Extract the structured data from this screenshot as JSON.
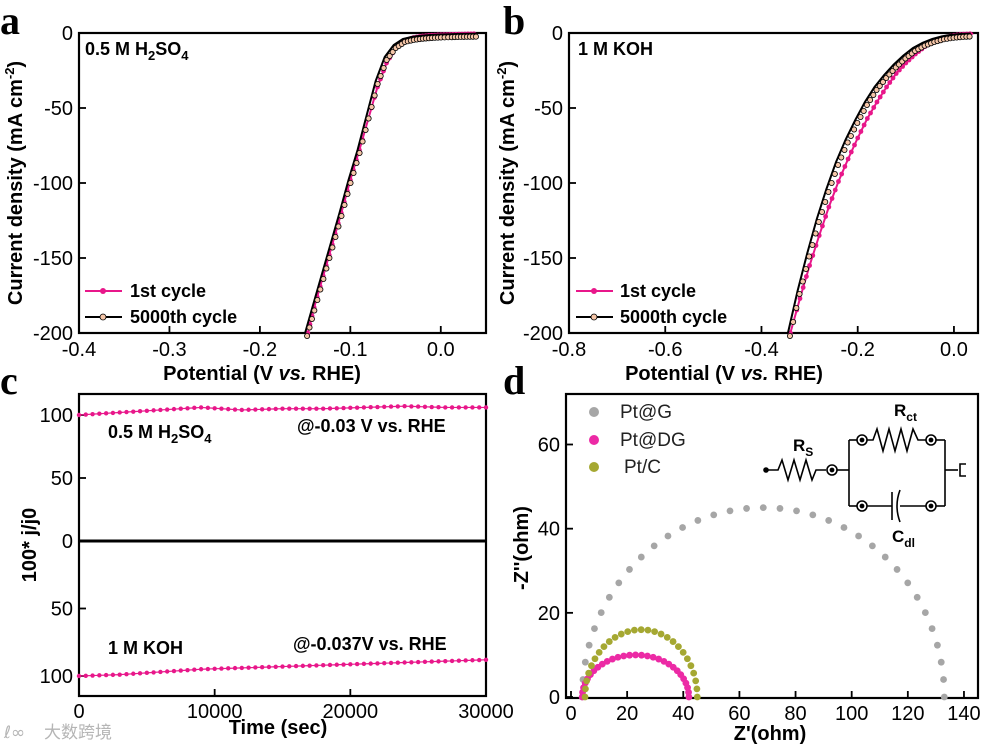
{
  "watermark": "大数跨境",
  "chart_data": [
    {
      "panel": "a",
      "type": "line",
      "annotation": "0.5 M H2SO4",
      "xlabel": "Potential (V vs. RHE)",
      "ylabel": "Current density (mA cm-2)",
      "xlim": [
        -0.4,
        0.05
      ],
      "ylim": [
        -200,
        0
      ],
      "xticks": [
        "-0.4",
        "-0.3",
        "-0.2",
        "-0.1",
        "0.0"
      ],
      "yticks": [
        "0",
        "-50",
        "-100",
        "-150",
        "-200"
      ],
      "legend": [
        "1st cycle",
        "5000th cycle"
      ],
      "series": [
        {
          "name": "1st cycle",
          "color": "#e8178a",
          "x": [
            -0.147,
            -0.14,
            -0.13,
            -0.12,
            -0.11,
            -0.1,
            -0.09,
            -0.08,
            -0.07,
            -0.06,
            -0.05,
            -0.04,
            -0.03,
            -0.02,
            -0.01,
            0.0,
            0.01,
            0.02,
            0.03,
            0.04
          ],
          "y": [
            -200,
            -183,
            -162,
            -141,
            -120,
            -98,
            -78,
            -57,
            -36,
            -20,
            -10,
            -5,
            -3,
            -2,
            -1.5,
            -1.2,
            -1,
            -0.8,
            -0.6,
            -0.5
          ]
        },
        {
          "name": "5000th cycle",
          "color": "#000000",
          "x": [
            -0.15,
            -0.142,
            -0.132,
            -0.122,
            -0.112,
            -0.102,
            -0.092,
            -0.082,
            -0.072,
            -0.062,
            -0.052,
            -0.042,
            -0.032,
            -0.022,
            -0.012,
            -0.002,
            0.01,
            0.02,
            0.03,
            0.04
          ],
          "y": [
            -200,
            -183,
            -162,
            -141,
            -120,
            -98,
            -78,
            -55,
            -32,
            -16,
            -8,
            -4,
            -2.6,
            -1.8,
            -1.3,
            -1,
            -0.8,
            -0.6,
            -0.5,
            -0.4
          ]
        }
      ]
    },
    {
      "panel": "b",
      "type": "line",
      "annotation": "1 M KOH",
      "xlabel": "Potential (V vs. RHE)",
      "ylabel": "Current density (mA cm-2)",
      "xlim": [
        -0.8,
        0.05
      ],
      "ylim": [
        -200,
        0
      ],
      "xticks": [
        "-0.8",
        "-0.6",
        "-0.4",
        "-0.2",
        "0.0"
      ],
      "yticks": [
        "0",
        "-50",
        "-100",
        "-150",
        "-200"
      ],
      "legend": [
        "1st cycle",
        "5000th cycle"
      ],
      "series": [
        {
          "name": "1st cycle",
          "color": "#e8178a",
          "x": [
            -0.34,
            -0.32,
            -0.3,
            -0.28,
            -0.26,
            -0.24,
            -0.22,
            -0.2,
            -0.18,
            -0.16,
            -0.14,
            -0.12,
            -0.1,
            -0.08,
            -0.06,
            -0.04,
            -0.02,
            0.0,
            0.02,
            0.04
          ],
          "y": [
            -200,
            -177,
            -155,
            -135,
            -116,
            -99,
            -84,
            -70,
            -57,
            -46,
            -36,
            -27,
            -20,
            -14,
            -9,
            -5.5,
            -3,
            -1.5,
            -0.8,
            -0.4
          ]
        },
        {
          "name": "5000th cycle",
          "color": "#000000",
          "x": [
            -0.345,
            -0.325,
            -0.305,
            -0.285,
            -0.265,
            -0.245,
            -0.225,
            -0.205,
            -0.185,
            -0.165,
            -0.145,
            -0.125,
            -0.105,
            -0.085,
            -0.065,
            -0.045,
            -0.025,
            -0.005,
            0.015,
            0.035
          ],
          "y": [
            -200,
            -172,
            -147,
            -124,
            -104,
            -86,
            -71,
            -58,
            -46,
            -36,
            -28,
            -21,
            -15,
            -10,
            -6.5,
            -4,
            -2.2,
            -1.2,
            -0.6,
            -0.3
          ]
        }
      ]
    },
    {
      "panel": "c",
      "type": "line",
      "xlabel": "Time (sec)",
      "ylabel": "100* j/j0",
      "xlim": [
        0,
        30000
      ],
      "xticks": [
        "0",
        "10000",
        "20000",
        "30000"
      ],
      "yticks_upper": [
        "100",
        "50",
        "0"
      ],
      "yticks_lower": [
        "50",
        "100"
      ],
      "series": [
        {
          "name": "0.5 M H2SO4",
          "condition": "@-0.03 V vs. RHE",
          "color": "#e8178a",
          "x": [
            0,
            3000,
            6000,
            9000,
            12000,
            15000,
            18000,
            21000,
            24000,
            27000,
            30000
          ],
          "y": [
            100,
            102,
            104,
            106,
            104,
            105,
            105,
            106,
            107,
            106,
            106
          ]
        },
        {
          "name": "1 M KOH",
          "condition": "@-0.037V vs. RHE",
          "color": "#e8178a",
          "x": [
            0,
            3000,
            6000,
            9000,
            12000,
            15000,
            18000,
            21000,
            24000,
            27000,
            30000
          ],
          "y": [
            100,
            99,
            97,
            95,
            94,
            93,
            92,
            91,
            90,
            89,
            88
          ]
        }
      ]
    },
    {
      "panel": "d",
      "type": "scatter",
      "xlabel": "Z'(ohm)",
      "ylabel": "-Z''(ohm)",
      "xlim": [
        0,
        145
      ],
      "ylim": [
        0,
        72
      ],
      "xticks": [
        "0",
        "20",
        "40",
        "60",
        "80",
        "100",
        "120",
        "140"
      ],
      "yticks": [
        "0",
        "20",
        "40",
        "60"
      ],
      "legend": [
        "Pt@G",
        "Pt@DG",
        "Pt/C"
      ],
      "circuit_labels": [
        "Rs",
        "Rct",
        "Cdl"
      ],
      "series": [
        {
          "name": "Pt@G",
          "color": "#a6a6a6",
          "x0": 4,
          "x1": 133,
          "peak": 45
        },
        {
          "name": "Pt@DG",
          "color": "#ec2aa5",
          "x0": 4,
          "x1": 42,
          "peak": 10
        },
        {
          "name": "Pt/C",
          "color": "#a5a832",
          "x0": 5,
          "x1": 45,
          "peak": 16
        }
      ]
    }
  ]
}
